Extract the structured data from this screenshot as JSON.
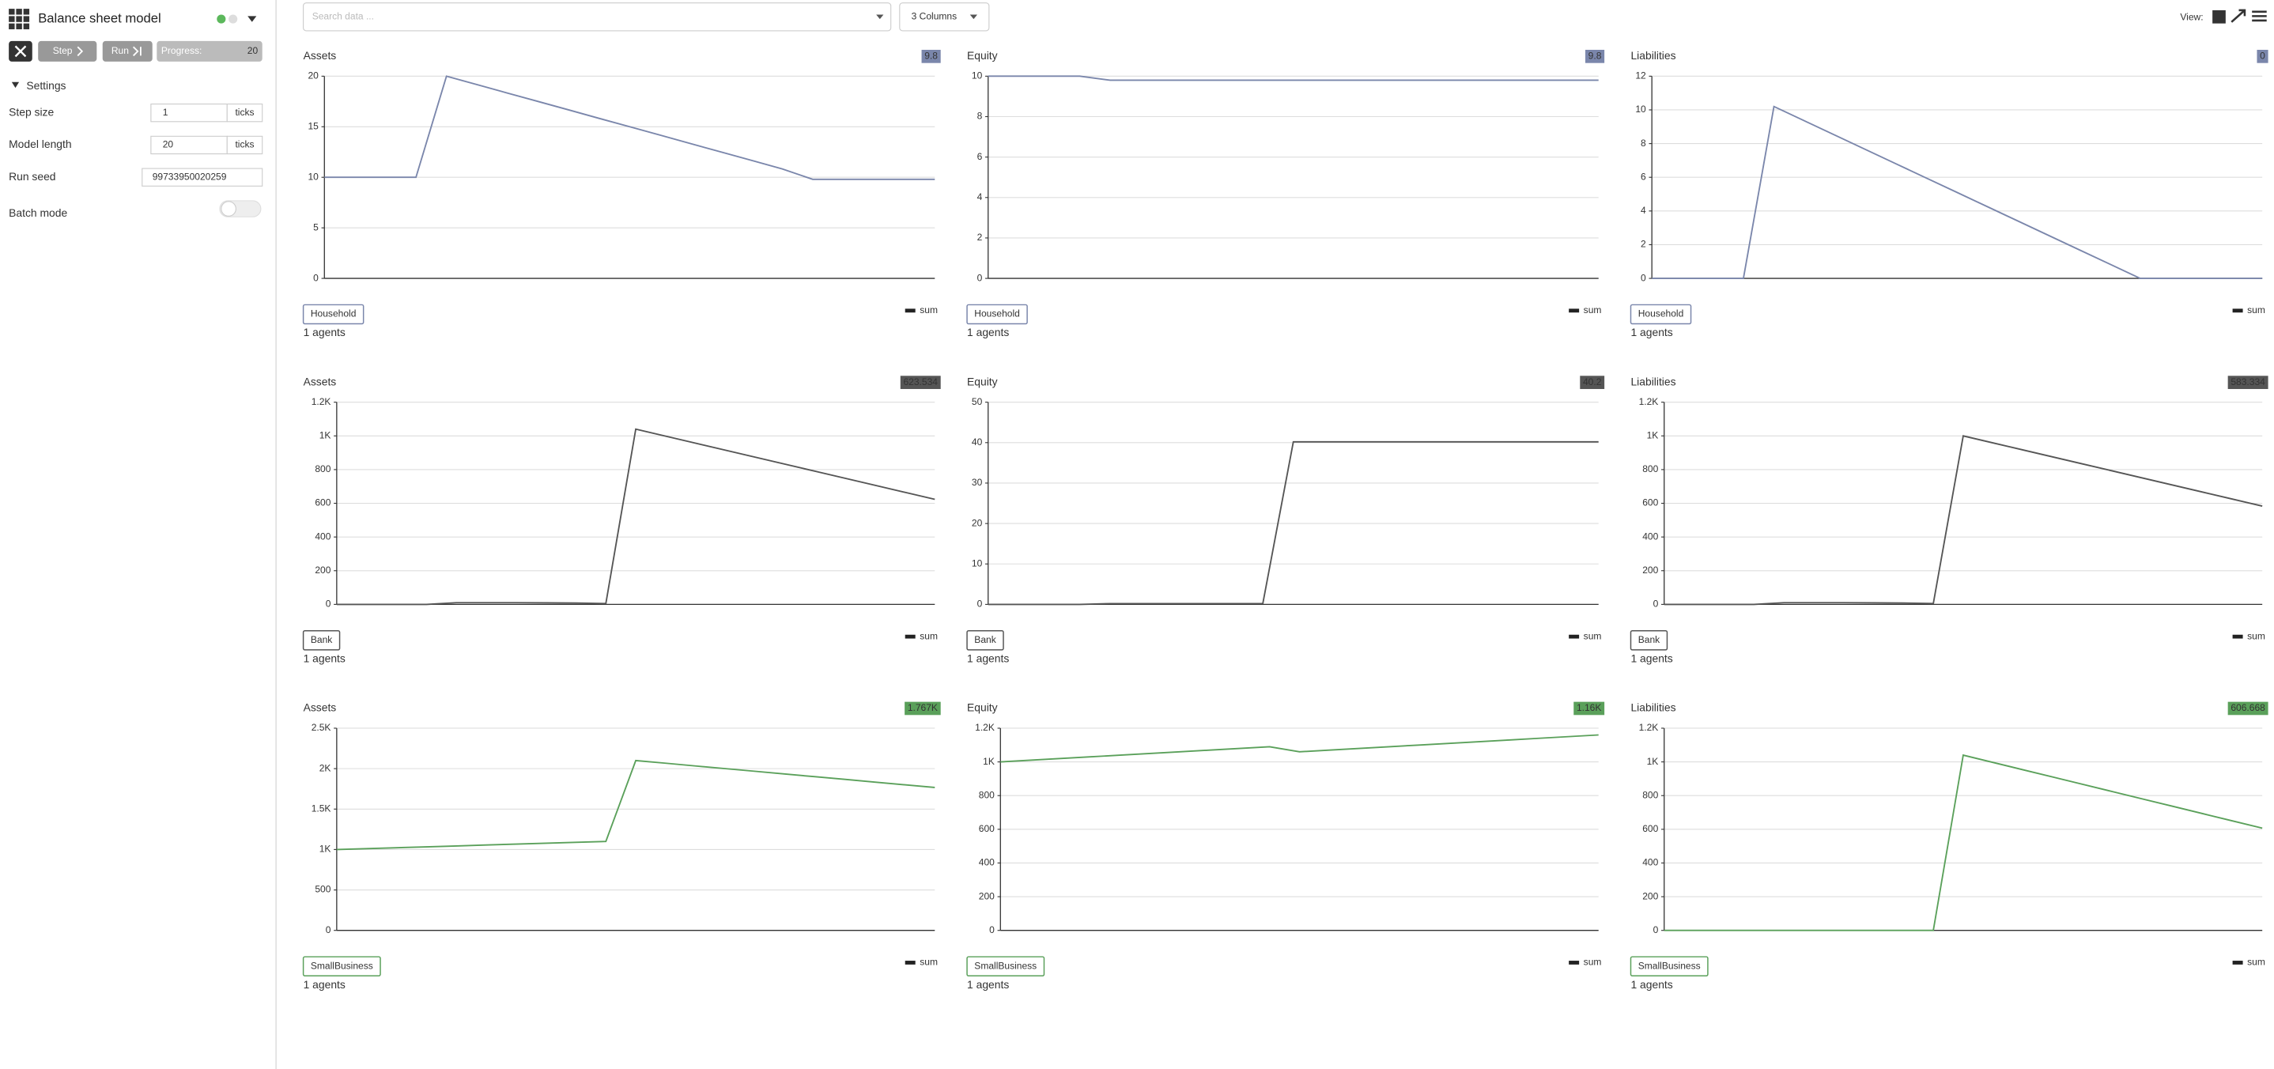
{
  "app": {
    "title": "Balance sheet model",
    "step_button": "Step",
    "run_button": "Run",
    "progress_label": "Progress:",
    "progress_value": "20",
    "settings_title": "Settings",
    "settings": [
      {
        "label": "Step size",
        "value": "1",
        "unit": "ticks"
      },
      {
        "label": "Model length",
        "value": "20",
        "unit": "ticks"
      },
      {
        "label": "Run seed",
        "value": "99733950020259"
      },
      {
        "label": "Batch mode"
      }
    ],
    "search_placeholder": "Search data ...",
    "columns_button": "3 Columns",
    "view_label": "View:"
  },
  "chart_data": [
    {
      "type": "line",
      "title": "Assets",
      "badge": "9.8",
      "agent": "Household",
      "agent_count": "1 agents",
      "x": [
        0,
        1,
        2,
        3,
        4,
        5,
        6,
        7,
        8,
        9,
        10,
        11,
        12,
        13,
        14,
        15,
        16,
        17,
        18,
        19,
        20
      ],
      "xlim": [
        0,
        20
      ],
      "ylim": [
        0,
        20
      ],
      "yticks": [
        0,
        5,
        10,
        15,
        20
      ],
      "grid": true,
      "legend": "upper right",
      "series": [
        {
          "name": "sum",
          "color": "#7a86ab",
          "values": [
            10,
            10,
            10,
            10,
            20,
            19.17,
            18.33,
            17.5,
            16.67,
            15.83,
            15,
            14.17,
            13.33,
            12.5,
            11.67,
            10.83,
            9.8,
            9.8,
            9.8,
            9.8,
            9.8
          ]
        }
      ]
    },
    {
      "type": "line",
      "title": "Equity",
      "badge": "9.8",
      "agent": "Household",
      "agent_count": "1 agents",
      "x": [
        0,
        1,
        2,
        3,
        4,
        5,
        6,
        7,
        8,
        9,
        10,
        11,
        12,
        13,
        14,
        15,
        16,
        17,
        18,
        19,
        20
      ],
      "xlim": [
        0,
        20
      ],
      "ylim": [
        0,
        10
      ],
      "yticks": [
        0,
        2,
        4,
        6,
        8,
        10
      ],
      "grid": true,
      "legend": "upper right",
      "series": [
        {
          "name": "sum",
          "color": "#7a86ab",
          "values": [
            10,
            10,
            10,
            10,
            9.8,
            9.8,
            9.8,
            9.8,
            9.8,
            9.8,
            9.8,
            9.8,
            9.8,
            9.8,
            9.8,
            9.8,
            9.8,
            9.8,
            9.8,
            9.8,
            9.8
          ]
        }
      ]
    },
    {
      "type": "line",
      "title": "Liabilities",
      "badge": "0",
      "agent": "Household",
      "agent_count": "1 agents",
      "x": [
        0,
        1,
        2,
        3,
        4,
        5,
        6,
        7,
        8,
        9,
        10,
        11,
        12,
        13,
        14,
        15,
        16,
        17,
        18,
        19,
        20
      ],
      "xlim": [
        0,
        20
      ],
      "ylim": [
        0,
        12
      ],
      "yticks": [
        0,
        2,
        4,
        6,
        8,
        10,
        12
      ],
      "grid": true,
      "legend": "upper right",
      "series": [
        {
          "name": "sum",
          "color": "#7a86ab",
          "values": [
            0,
            0,
            0,
            0,
            10.2,
            9.35,
            8.5,
            7.65,
            6.8,
            5.95,
            5.1,
            4.25,
            3.4,
            2.55,
            1.7,
            0.85,
            0,
            0,
            0,
            0,
            0
          ]
        }
      ]
    },
    {
      "type": "line",
      "title": "Assets",
      "badge": "623.534",
      "agent": "Bank",
      "agent_count": "1 agents",
      "x": [
        0,
        1,
        2,
        3,
        4,
        5,
        6,
        7,
        8,
        9,
        10,
        11,
        12,
        13,
        14,
        15,
        16,
        17,
        18,
        19,
        20
      ],
      "xlim": [
        0,
        20
      ],
      "ylim": [
        0,
        1200
      ],
      "yticks": [
        0,
        200,
        400,
        600,
        800,
        {
          "value": 1000,
          "label": "1K"
        },
        {
          "value": 1200,
          "label": "1.2K"
        }
      ],
      "grid": true,
      "legend": "upper right",
      "series": [
        {
          "name": "sum",
          "color": "#555555",
          "values": [
            0,
            0,
            0,
            0,
            10,
            10,
            10,
            9,
            8,
            5,
            1040,
            998.3,
            956.7,
            915,
            873.4,
            831.8,
            790.1,
            748.5,
            706.8,
            665.2,
            623.534
          ]
        }
      ]
    },
    {
      "type": "line",
      "title": "Equity",
      "badge": "40.2",
      "agent": "Bank",
      "agent_count": "1 agents",
      "x": [
        0,
        1,
        2,
        3,
        4,
        5,
        6,
        7,
        8,
        9,
        10,
        11,
        12,
        13,
        14,
        15,
        16,
        17,
        18,
        19,
        20
      ],
      "xlim": [
        0,
        20
      ],
      "ylim": [
        0,
        50
      ],
      "yticks": [
        0,
        10,
        20,
        30,
        40,
        50
      ],
      "grid": true,
      "legend": "upper right",
      "series": [
        {
          "name": "sum",
          "color": "#555555",
          "values": [
            0,
            0,
            0,
            0,
            0.2,
            0.2,
            0.2,
            0.2,
            0.2,
            0.2,
            40.2,
            40.2,
            40.2,
            40.2,
            40.2,
            40.2,
            40.2,
            40.2,
            40.2,
            40.2,
            40.2
          ]
        }
      ]
    },
    {
      "type": "line",
      "title": "Liabilities",
      "badge": "583.334",
      "agent": "Bank",
      "agent_count": "1 agents",
      "x": [
        0,
        1,
        2,
        3,
        4,
        5,
        6,
        7,
        8,
        9,
        10,
        11,
        12,
        13,
        14,
        15,
        16,
        17,
        18,
        19,
        20
      ],
      "xlim": [
        0,
        20
      ],
      "ylim": [
        0,
        1200
      ],
      "yticks": [
        0,
        200,
        400,
        600,
        800,
        {
          "value": 1000,
          "label": "1K"
        },
        {
          "value": 1200,
          "label": "1.2K"
        }
      ],
      "grid": true,
      "legend": "upper right",
      "series": [
        {
          "name": "sum",
          "color": "#555555",
          "values": [
            0,
            0,
            0,
            0,
            10,
            10,
            10,
            9,
            8,
            5,
            1000,
            958.3,
            916.7,
            875,
            833.3,
            791.7,
            750,
            708.3,
            666.7,
            625,
            583.334
          ]
        }
      ]
    },
    {
      "type": "line",
      "title": "Assets",
      "badge": "1.767K",
      "agent": "SmallBusiness",
      "agent_count": "1 agents",
      "x": [
        0,
        1,
        2,
        3,
        4,
        5,
        6,
        7,
        8,
        9,
        10,
        11,
        12,
        13,
        14,
        15,
        16,
        17,
        18,
        19,
        20
      ],
      "xlim": [
        0,
        20
      ],
      "ylim": [
        0,
        2500
      ],
      "yticks": [
        0,
        500,
        {
          "value": 1000,
          "label": "1K"
        },
        {
          "value": 1500,
          "label": "1.5K"
        },
        {
          "value": 2000,
          "label": "2K"
        },
        {
          "value": 2500,
          "label": "2.5K"
        }
      ],
      "grid": true,
      "legend": "upper right",
      "series": [
        {
          "name": "sum",
          "color": "#5aa05a",
          "values": [
            1000,
            1011,
            1022,
            1033,
            1044,
            1056,
            1067,
            1078,
            1089,
            1100,
            2100,
            2067,
            2033,
            2000,
            1967,
            1933,
            1900,
            1867,
            1833,
            1800,
            1767
          ]
        }
      ]
    },
    {
      "type": "line",
      "title": "Equity",
      "badge": "1.16K",
      "agent": "SmallBusiness",
      "agent_count": "1 agents",
      "x": [
        0,
        1,
        2,
        3,
        4,
        5,
        6,
        7,
        8,
        9,
        10,
        11,
        12,
        13,
        14,
        15,
        16,
        17,
        18,
        19,
        20
      ],
      "xlim": [
        0,
        20
      ],
      "ylim": [
        0,
        1200
      ],
      "yticks": [
        0,
        200,
        400,
        600,
        800,
        {
          "value": 1000,
          "label": "1K"
        },
        {
          "value": 1200,
          "label": "1.2K"
        }
      ],
      "grid": true,
      "legend": "upper right",
      "series": [
        {
          "name": "sum",
          "color": "#5aa05a",
          "values": [
            1000,
            1010,
            1020,
            1030,
            1040,
            1050,
            1060,
            1070,
            1080,
            1090,
            1060,
            1070,
            1080,
            1090,
            1100,
            1110,
            1120,
            1130,
            1140,
            1150,
            1160
          ]
        }
      ]
    },
    {
      "type": "line",
      "title": "Liabilities",
      "badge": "606.668",
      "agent": "SmallBusiness",
      "agent_count": "1 agents",
      "x": [
        0,
        1,
        2,
        3,
        4,
        5,
        6,
        7,
        8,
        9,
        10,
        11,
        12,
        13,
        14,
        15,
        16,
        17,
        18,
        19,
        20
      ],
      "xlim": [
        0,
        20
      ],
      "ylim": [
        0,
        1200
      ],
      "yticks": [
        0,
        200,
        400,
        600,
        800,
        {
          "value": 1000,
          "label": "1K"
        },
        {
          "value": 1200,
          "label": "1.2K"
        }
      ],
      "grid": true,
      "legend": "upper right",
      "series": [
        {
          "name": "sum",
          "color": "#5aa05a",
          "values": [
            0,
            0,
            0,
            0,
            0,
            0,
            0,
            0,
            0,
            0,
            1040,
            996.7,
            953.3,
            910,
            866.7,
            823.3,
            780,
            736.7,
            693.3,
            650,
            606.668
          ]
        }
      ]
    }
  ]
}
